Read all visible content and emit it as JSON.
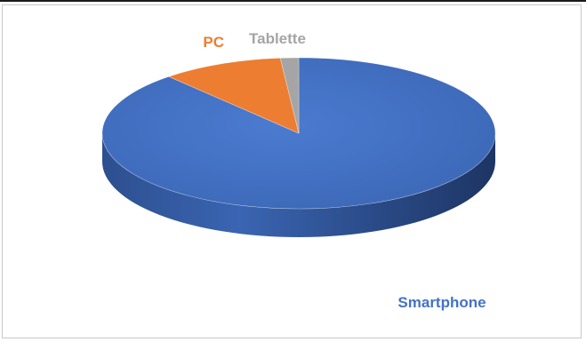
{
  "chart_data": {
    "type": "pie",
    "style": "3d",
    "title": "",
    "slices": [
      {
        "label": "Smartphone",
        "value": 88.5,
        "color": "#4472c4"
      },
      {
        "label": "PC",
        "value": 10.0,
        "color": "#ed7d31"
      },
      {
        "label": "Tablette",
        "value": 1.5,
        "color": "#a5a5a5"
      }
    ],
    "legend": "none",
    "data_labels": "category-name"
  }
}
